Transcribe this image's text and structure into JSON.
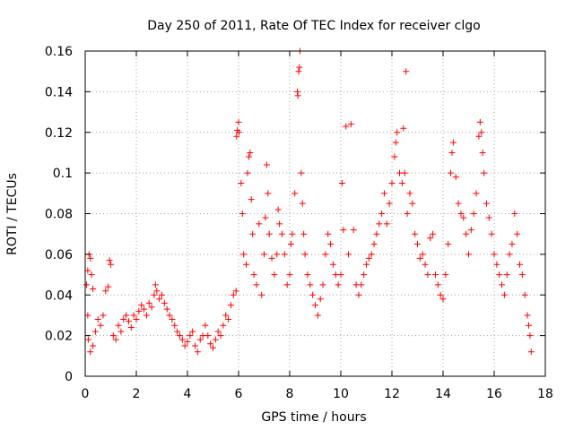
{
  "chart_data": {
    "type": "scatter",
    "title": "Day 250 of 2011, Rate Of TEC Index for receiver clgo",
    "xlabel": "GPS time / hours",
    "ylabel": "ROTI / TECUs",
    "xlim": [
      0,
      18
    ],
    "ylim": [
      0,
      0.16
    ],
    "xticks": [
      0,
      2,
      4,
      6,
      8,
      10,
      12,
      14,
      16,
      18
    ],
    "xtick_labels": [
      "0",
      "2",
      "4",
      "6",
      "8",
      "10",
      "12",
      "14",
      "16",
      "18"
    ],
    "yticks": [
      0,
      0.02,
      0.04,
      0.06,
      0.08,
      0.1,
      0.12,
      0.14,
      0.16
    ],
    "ytick_labels": [
      "0",
      "0.02",
      "0.04",
      "0.06",
      "0.08",
      "0.1",
      "0.12",
      "0.14",
      "0.16"
    ],
    "grid": true,
    "marker": "+",
    "color": "#ff0000",
    "series": [
      {
        "name": "ROTI",
        "points": [
          [
            0.05,
            0.045
          ],
          [
            0.1,
            0.052
          ],
          [
            0.15,
            0.06
          ],
          [
            0.2,
            0.058
          ],
          [
            0.25,
            0.05
          ],
          [
            0.3,
            0.043
          ],
          [
            0.1,
            0.03
          ],
          [
            0.12,
            0.018
          ],
          [
            0.2,
            0.012
          ],
          [
            0.3,
            0.015
          ],
          [
            0.4,
            0.022
          ],
          [
            0.5,
            0.028
          ],
          [
            0.6,
            0.025
          ],
          [
            0.7,
            0.03
          ],
          [
            0.8,
            0.042
          ],
          [
            0.9,
            0.044
          ],
          [
            1.0,
            0.055
          ],
          [
            0.95,
            0.057
          ],
          [
            1.1,
            0.02
          ],
          [
            1.2,
            0.018
          ],
          [
            1.3,
            0.025
          ],
          [
            1.4,
            0.022
          ],
          [
            1.5,
            0.028
          ],
          [
            1.6,
            0.03
          ],
          [
            1.7,
            0.027
          ],
          [
            1.8,
            0.024
          ],
          [
            1.9,
            0.03
          ],
          [
            2.0,
            0.028
          ],
          [
            2.1,
            0.032
          ],
          [
            2.2,
            0.035
          ],
          [
            2.3,
            0.033
          ],
          [
            2.4,
            0.03
          ],
          [
            2.5,
            0.036
          ],
          [
            2.6,
            0.034
          ],
          [
            2.7,
            0.04
          ],
          [
            2.75,
            0.045
          ],
          [
            2.8,
            0.042
          ],
          [
            2.9,
            0.038
          ],
          [
            3.0,
            0.04
          ],
          [
            3.1,
            0.036
          ],
          [
            3.2,
            0.033
          ],
          [
            3.3,
            0.03
          ],
          [
            3.4,
            0.028
          ],
          [
            3.5,
            0.025
          ],
          [
            3.6,
            0.022
          ],
          [
            3.7,
            0.02
          ],
          [
            3.8,
            0.018
          ],
          [
            3.9,
            0.015
          ],
          [
            4.0,
            0.017
          ],
          [
            4.1,
            0.02
          ],
          [
            4.2,
            0.022
          ],
          [
            4.3,
            0.015
          ],
          [
            4.4,
            0.012
          ],
          [
            4.5,
            0.018
          ],
          [
            4.6,
            0.02
          ],
          [
            4.7,
            0.025
          ],
          [
            4.8,
            0.02
          ],
          [
            4.9,
            0.016
          ],
          [
            5.0,
            0.014
          ],
          [
            5.1,
            0.018
          ],
          [
            5.2,
            0.022
          ],
          [
            5.3,
            0.02
          ],
          [
            5.4,
            0.025
          ],
          [
            5.5,
            0.03
          ],
          [
            5.6,
            0.028
          ],
          [
            5.7,
            0.035
          ],
          [
            5.8,
            0.04
          ],
          [
            5.9,
            0.042
          ],
          [
            5.92,
            0.118
          ],
          [
            5.95,
            0.121
          ],
          [
            6.0,
            0.125
          ],
          [
            6.02,
            0.12
          ],
          [
            6.1,
            0.095
          ],
          [
            6.15,
            0.08
          ],
          [
            6.2,
            0.06
          ],
          [
            6.3,
            0.055
          ],
          [
            6.35,
            0.1
          ],
          [
            6.4,
            0.108
          ],
          [
            6.45,
            0.11
          ],
          [
            6.5,
            0.087
          ],
          [
            6.55,
            0.07
          ],
          [
            6.6,
            0.05
          ],
          [
            6.7,
            0.045
          ],
          [
            6.8,
            0.075
          ],
          [
            6.9,
            0.04
          ],
          [
            7.0,
            0.06
          ],
          [
            7.05,
            0.078
          ],
          [
            7.1,
            0.104
          ],
          [
            7.15,
            0.09
          ],
          [
            7.2,
            0.07
          ],
          [
            7.3,
            0.058
          ],
          [
            7.4,
            0.05
          ],
          [
            7.5,
            0.06
          ],
          [
            7.55,
            0.082
          ],
          [
            7.6,
            0.075
          ],
          [
            7.7,
            0.07
          ],
          [
            7.8,
            0.06
          ],
          [
            7.9,
            0.045
          ],
          [
            8.0,
            0.05
          ],
          [
            8.05,
            0.065
          ],
          [
            8.1,
            0.07
          ],
          [
            8.2,
            0.09
          ],
          [
            8.3,
            0.14
          ],
          [
            8.32,
            0.138
          ],
          [
            8.35,
            0.15
          ],
          [
            8.38,
            0.152
          ],
          [
            8.4,
            0.16
          ],
          [
            8.45,
            0.1
          ],
          [
            8.5,
            0.085
          ],
          [
            8.55,
            0.07
          ],
          [
            8.6,
            0.06
          ],
          [
            8.7,
            0.05
          ],
          [
            8.8,
            0.045
          ],
          [
            8.9,
            0.04
          ],
          [
            9.0,
            0.035
          ],
          [
            9.1,
            0.03
          ],
          [
            9.2,
            0.038
          ],
          [
            9.3,
            0.045
          ],
          [
            9.4,
            0.06
          ],
          [
            9.5,
            0.07
          ],
          [
            9.6,
            0.065
          ],
          [
            9.7,
            0.055
          ],
          [
            9.8,
            0.05
          ],
          [
            9.9,
            0.045
          ],
          [
            10.0,
            0.05
          ],
          [
            10.05,
            0.095
          ],
          [
            10.1,
            0.072
          ],
          [
            10.2,
            0.123
          ],
          [
            10.3,
            0.06
          ],
          [
            10.4,
            0.124
          ],
          [
            10.5,
            0.072
          ],
          [
            10.6,
            0.045
          ],
          [
            10.7,
            0.04
          ],
          [
            10.8,
            0.045
          ],
          [
            10.9,
            0.05
          ],
          [
            11.0,
            0.055
          ],
          [
            11.1,
            0.058
          ],
          [
            11.2,
            0.06
          ],
          [
            11.3,
            0.065
          ],
          [
            11.4,
            0.07
          ],
          [
            11.5,
            0.075
          ],
          [
            11.6,
            0.08
          ],
          [
            11.7,
            0.09
          ],
          [
            11.8,
            0.075
          ],
          [
            11.9,
            0.085
          ],
          [
            12.0,
            0.095
          ],
          [
            12.1,
            0.108
          ],
          [
            12.15,
            0.115
          ],
          [
            12.2,
            0.12
          ],
          [
            12.3,
            0.1
          ],
          [
            12.4,
            0.095
          ],
          [
            12.45,
            0.122
          ],
          [
            12.5,
            0.1
          ],
          [
            12.55,
            0.15
          ],
          [
            12.6,
            0.08
          ],
          [
            12.7,
            0.09
          ],
          [
            12.8,
            0.085
          ],
          [
            12.9,
            0.07
          ],
          [
            13.0,
            0.065
          ],
          [
            13.1,
            0.058
          ],
          [
            13.2,
            0.06
          ],
          [
            13.3,
            0.055
          ],
          [
            13.4,
            0.05
          ],
          [
            13.5,
            0.068
          ],
          [
            13.6,
            0.07
          ],
          [
            13.7,
            0.05
          ],
          [
            13.8,
            0.045
          ],
          [
            13.9,
            0.04
          ],
          [
            14.0,
            0.038
          ],
          [
            14.1,
            0.05
          ],
          [
            14.2,
            0.065
          ],
          [
            14.3,
            0.1
          ],
          [
            14.35,
            0.11
          ],
          [
            14.4,
            0.115
          ],
          [
            14.5,
            0.098
          ],
          [
            14.6,
            0.085
          ],
          [
            14.7,
            0.08
          ],
          [
            14.8,
            0.078
          ],
          [
            14.9,
            0.07
          ],
          [
            15.0,
            0.06
          ],
          [
            15.1,
            0.072
          ],
          [
            15.2,
            0.08
          ],
          [
            15.3,
            0.09
          ],
          [
            15.4,
            0.118
          ],
          [
            15.45,
            0.125
          ],
          [
            15.5,
            0.12
          ],
          [
            15.55,
            0.11
          ],
          [
            15.6,
            0.1
          ],
          [
            15.7,
            0.085
          ],
          [
            15.8,
            0.078
          ],
          [
            15.9,
            0.07
          ],
          [
            16.0,
            0.06
          ],
          [
            16.1,
            0.055
          ],
          [
            16.2,
            0.05
          ],
          [
            16.3,
            0.045
          ],
          [
            16.4,
            0.04
          ],
          [
            16.5,
            0.05
          ],
          [
            16.6,
            0.06
          ],
          [
            16.7,
            0.065
          ],
          [
            16.8,
            0.08
          ],
          [
            16.9,
            0.07
          ],
          [
            17.0,
            0.055
          ],
          [
            17.1,
            0.05
          ],
          [
            17.2,
            0.04
          ],
          [
            17.3,
            0.03
          ],
          [
            17.35,
            0.025
          ],
          [
            17.4,
            0.02
          ],
          [
            17.45,
            0.012
          ]
        ]
      }
    ]
  }
}
